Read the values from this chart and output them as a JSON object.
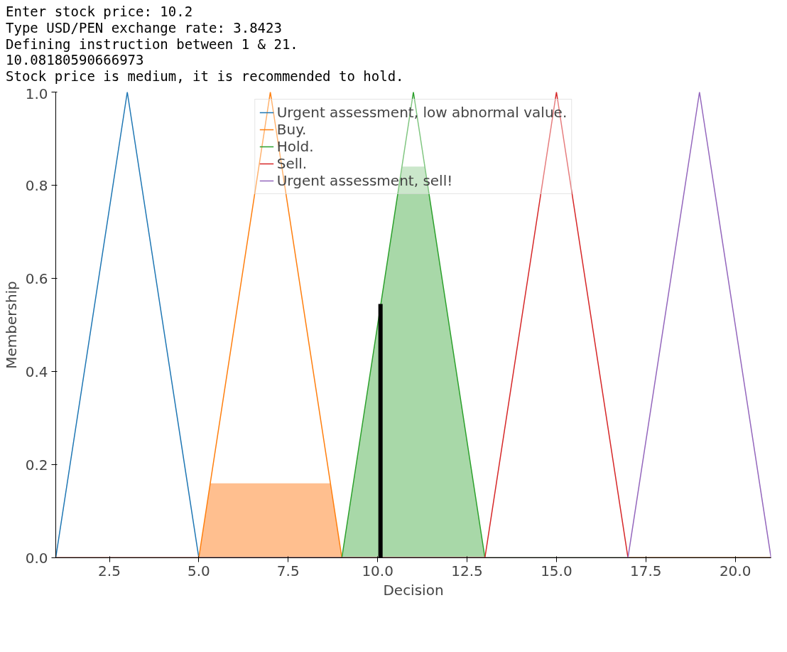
{
  "chart_data": {
    "type": "line",
    "xlabel": "Decision",
    "ylabel": "Membership",
    "annotations": [
      "Enter stock price: 10.2",
      "Type USD/PEN exchange rate: 3.8423",
      "Defining instruction between 1 & 21.",
      "10.08180590666973",
      "Stock price is medium, it is recommended to hold."
    ],
    "xlim": [
      1,
      21
    ],
    "ylim": [
      0,
      1.0
    ],
    "xticks": [
      {
        "value": 2.5,
        "label": "2.5"
      },
      {
        "value": 5,
        "label": "5.0"
      },
      {
        "value": 7.5,
        "label": "7.5"
      },
      {
        "value": 10,
        "label": "10.0"
      },
      {
        "value": 12.5,
        "label": "12.5"
      },
      {
        "value": 15,
        "label": "15.0"
      },
      {
        "value": 17.5,
        "label": "17.5"
      },
      {
        "value": 20,
        "label": "20.0"
      }
    ],
    "yticks": [
      {
        "value": 0,
        "label": "0.0"
      },
      {
        "value": 0.2,
        "label": "0.2"
      },
      {
        "value": 0.4,
        "label": "0.4"
      },
      {
        "value": 0.6,
        "label": "0.6"
      },
      {
        "value": 0.8,
        "label": "0.8"
      },
      {
        "value": 1,
        "label": "1.0"
      }
    ],
    "grid": false,
    "legend": "top",
    "marker": "none",
    "line_style": "solid",
    "series": [
      {
        "type": "area",
        "color": "#ffbf8f",
        "x": [
          5,
          5.32,
          8.68,
          9
        ],
        "values": [
          0,
          0.16,
          0.16,
          0
        ]
      },
      {
        "type": "area",
        "color": "#a8d8a8",
        "x": [
          9,
          10.68,
          11.32,
          13
        ],
        "values": [
          0,
          0.84,
          0.84,
          0
        ]
      },
      {
        "name": "Urgent assessment, low abnormal value.",
        "color": "#1f77b4",
        "x": [
          1,
          3,
          5,
          21
        ],
        "values": [
          0,
          1,
          0,
          0
        ]
      },
      {
        "name": "Buy.",
        "color": "#ff7f0e",
        "x": [
          1,
          5,
          7,
          9,
          21
        ],
        "values": [
          0,
          0,
          1,
          0,
          0
        ]
      },
      {
        "name": "Hold.",
        "color": "#2ca02c",
        "x": [
          1,
          9,
          11,
          13,
          21
        ],
        "values": [
          0,
          0,
          1,
          0,
          0
        ]
      },
      {
        "name": "Sell.",
        "color": "#d62728",
        "x": [
          1,
          13,
          15,
          17,
          21
        ],
        "values": [
          0,
          0,
          1,
          0,
          0
        ]
      },
      {
        "name": "Urgent assessment, sell!",
        "color": "#9467bd",
        "x": [
          1,
          17,
          19,
          21
        ],
        "values": [
          0,
          0,
          1,
          0
        ]
      },
      {
        "type": "line",
        "color": "#000000",
        "x": [
          10.08,
          10.08
        ],
        "values": [
          0,
          0.545
        ]
      }
    ]
  }
}
